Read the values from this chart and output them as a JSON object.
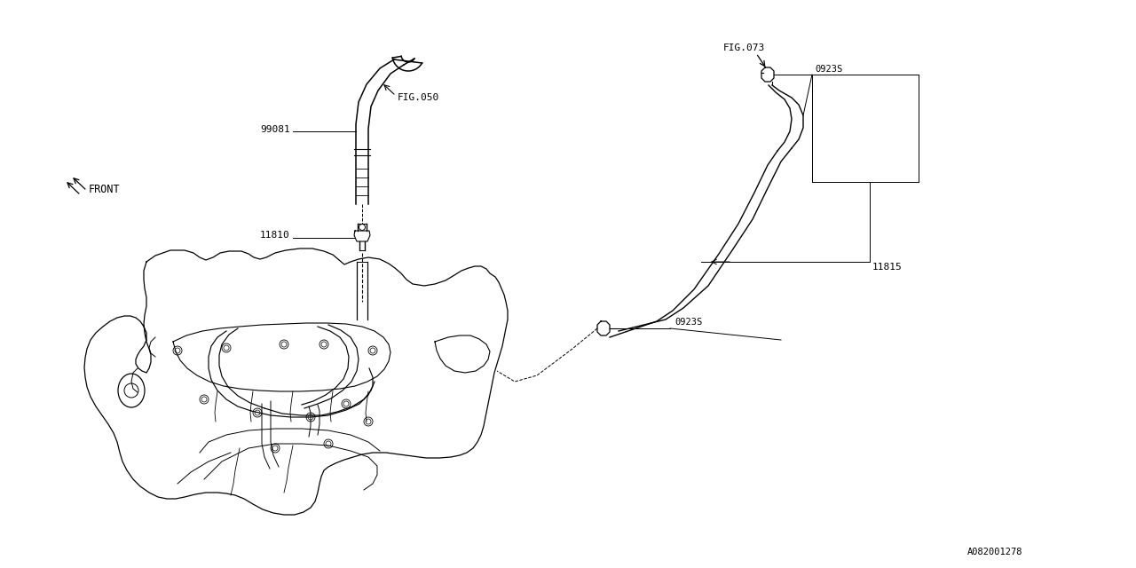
{
  "bg_color": "#ffffff",
  "line_color": "#000000",
  "fig_ref": "A082001278",
  "labels": {
    "fig050": "FIG.050",
    "fig073": "FIG.073",
    "p99081": "99081",
    "p11810": "11810",
    "p11815": "11815",
    "p0923s_top": "0923S",
    "p0923s_bot": "0923S",
    "front": "FRONT"
  }
}
